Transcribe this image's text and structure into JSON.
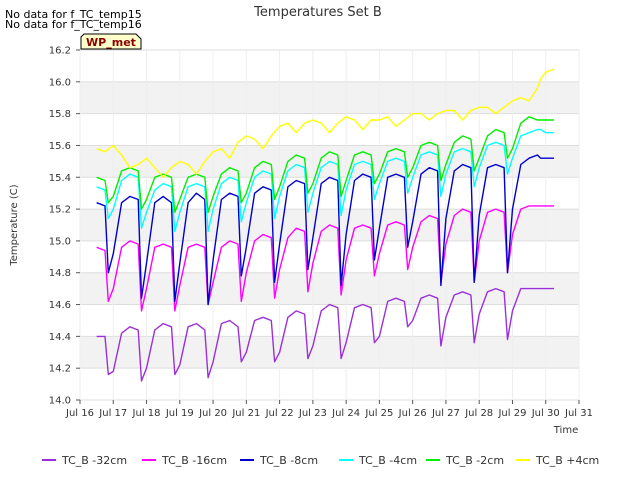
{
  "header_notes": [
    "No data for f_TC_temp15",
    "No data for f_TC_temp16"
  ],
  "badge": {
    "label": "WP_met",
    "fill": "#ffffcc",
    "border": "#000000",
    "text_color": "#8b0000"
  },
  "chart_data": {
    "type": "line",
    "title": "Temperatures Set B",
    "xlabel": "Time",
    "ylabel": "Temperature (C)",
    "ylim": [
      14.0,
      16.2
    ],
    "xlim": [
      16,
      31
    ],
    "yticks": [
      "14.0",
      "14.2",
      "14.4",
      "14.6",
      "14.8",
      "15.0",
      "15.2",
      "15.4",
      "15.6",
      "15.8",
      "16.0",
      "16.2"
    ],
    "xticks": [
      "Jul 16",
      "Jul 17",
      "Jul 18",
      "Jul 19",
      "Jul 20",
      "Jul 21",
      "Jul 22",
      "Jul 23",
      "Jul 24",
      "Jul 25",
      "Jul 26",
      "Jul 27",
      "Jul 28",
      "Jul 29",
      "Jul 30",
      "Jul 31"
    ],
    "grid": true,
    "legend_position": "bottom",
    "series": [
      {
        "name": "TC_B -32cm",
        "color": "#9b30d9",
        "x": [
          16.5,
          16.75,
          16.85,
          17.0,
          17.25,
          17.5,
          17.75,
          17.85,
          18.0,
          18.25,
          18.5,
          18.75,
          18.85,
          19.0,
          19.25,
          19.5,
          19.75,
          19.85,
          20.0,
          20.25,
          20.5,
          20.75,
          20.85,
          21.0,
          21.25,
          21.5,
          21.75,
          21.85,
          22.0,
          22.25,
          22.5,
          22.75,
          22.85,
          23.0,
          23.25,
          23.5,
          23.75,
          23.85,
          24.0,
          24.25,
          24.5,
          24.75,
          24.85,
          25.0,
          25.25,
          25.5,
          25.75,
          25.85,
          26.0,
          26.25,
          26.5,
          26.75,
          26.85,
          27.0,
          27.25,
          27.5,
          27.75,
          27.85,
          28.0,
          28.25,
          28.5,
          28.75,
          28.85,
          29.0,
          29.25,
          29.5,
          29.75,
          29.85,
          30.0,
          30.25
        ],
        "y": [
          14.4,
          14.4,
          14.16,
          14.18,
          14.42,
          14.46,
          14.44,
          14.12,
          14.2,
          14.44,
          14.48,
          14.46,
          14.16,
          14.22,
          14.46,
          14.48,
          14.44,
          14.14,
          14.24,
          14.48,
          14.5,
          14.46,
          14.24,
          14.3,
          14.5,
          14.52,
          14.5,
          14.24,
          14.3,
          14.52,
          14.56,
          14.54,
          14.26,
          14.34,
          14.56,
          14.6,
          14.58,
          14.26,
          14.36,
          14.58,
          14.6,
          14.58,
          14.36,
          14.4,
          14.62,
          14.64,
          14.62,
          14.46,
          14.5,
          14.64,
          14.66,
          14.64,
          14.34,
          14.52,
          14.66,
          14.68,
          14.66,
          14.36,
          14.54,
          14.68,
          14.7,
          14.68,
          14.38,
          14.56,
          14.7,
          14.7,
          14.7,
          14.7,
          14.7,
          14.7
        ]
      },
      {
        "name": "TC_B -16cm",
        "color": "#ff00ff",
        "x": [
          16.5,
          16.75,
          16.85,
          17.0,
          17.25,
          17.5,
          17.75,
          17.85,
          18.0,
          18.25,
          18.5,
          18.75,
          18.85,
          19.0,
          19.25,
          19.5,
          19.75,
          19.85,
          20.0,
          20.25,
          20.5,
          20.75,
          20.85,
          21.0,
          21.25,
          21.5,
          21.75,
          21.85,
          22.0,
          22.25,
          22.5,
          22.75,
          22.85,
          23.0,
          23.25,
          23.5,
          23.75,
          23.85,
          24.0,
          24.25,
          24.5,
          24.75,
          24.85,
          25.0,
          25.25,
          25.5,
          25.75,
          25.85,
          26.0,
          26.25,
          26.5,
          26.75,
          26.85,
          27.0,
          27.25,
          27.5,
          27.75,
          27.85,
          28.0,
          28.25,
          28.5,
          28.75,
          28.85,
          29.0,
          29.25,
          29.5,
          29.75,
          29.85,
          30.0,
          30.25
        ],
        "y": [
          14.96,
          14.94,
          14.62,
          14.7,
          14.96,
          15.0,
          14.98,
          14.56,
          14.7,
          14.96,
          14.98,
          14.96,
          14.56,
          14.72,
          14.96,
          14.98,
          14.96,
          14.6,
          14.74,
          14.96,
          15.0,
          14.98,
          14.62,
          14.8,
          15.0,
          15.04,
          15.02,
          14.64,
          14.82,
          15.02,
          15.08,
          15.06,
          14.68,
          14.86,
          15.06,
          15.1,
          15.08,
          14.66,
          14.88,
          15.08,
          15.1,
          15.08,
          14.78,
          14.92,
          15.1,
          15.12,
          15.1,
          14.82,
          14.96,
          15.12,
          15.16,
          15.14,
          14.74,
          14.98,
          15.16,
          15.2,
          15.18,
          14.74,
          15.0,
          15.18,
          15.2,
          15.18,
          14.8,
          15.04,
          15.2,
          15.22,
          15.22,
          15.22,
          15.22,
          15.22
        ]
      },
      {
        "name": "TC_B -8cm",
        "color": "#0000cc",
        "x": [
          16.5,
          16.75,
          16.85,
          17.0,
          17.25,
          17.5,
          17.75,
          17.85,
          18.0,
          18.25,
          18.5,
          18.75,
          18.85,
          19.0,
          19.25,
          19.5,
          19.75,
          19.85,
          20.0,
          20.25,
          20.5,
          20.75,
          20.85,
          21.0,
          21.25,
          21.5,
          21.75,
          21.85,
          22.0,
          22.25,
          22.5,
          22.75,
          22.85,
          23.0,
          23.25,
          23.5,
          23.75,
          23.85,
          24.0,
          24.25,
          24.5,
          24.75,
          24.85,
          25.0,
          25.25,
          25.5,
          25.75,
          25.85,
          26.0,
          26.25,
          26.5,
          26.75,
          26.85,
          27.0,
          27.25,
          27.5,
          27.75,
          27.85,
          28.0,
          28.25,
          28.5,
          28.75,
          28.85,
          29.0,
          29.25,
          29.5,
          29.75,
          29.85,
          30.0,
          30.25
        ],
        "y": [
          15.24,
          15.22,
          14.8,
          14.92,
          15.24,
          15.28,
          15.26,
          14.64,
          14.86,
          15.24,
          15.28,
          15.24,
          14.62,
          14.86,
          15.24,
          15.3,
          15.26,
          14.6,
          14.88,
          15.26,
          15.3,
          15.28,
          14.78,
          14.96,
          15.3,
          15.34,
          15.32,
          14.74,
          14.98,
          15.34,
          15.38,
          15.36,
          14.82,
          15.02,
          15.36,
          15.4,
          15.38,
          14.72,
          15.04,
          15.38,
          15.42,
          15.4,
          14.88,
          15.08,
          15.4,
          15.42,
          15.4,
          14.96,
          15.12,
          15.42,
          15.46,
          15.44,
          14.72,
          15.14,
          15.44,
          15.48,
          15.46,
          14.74,
          15.16,
          15.46,
          15.48,
          15.46,
          14.8,
          15.2,
          15.48,
          15.52,
          15.54,
          15.52,
          15.52,
          15.52
        ]
      },
      {
        "name": "TC_B -4cm",
        "color": "#00ffff",
        "x": [
          16.5,
          16.75,
          16.85,
          17.0,
          17.25,
          17.5,
          17.75,
          17.85,
          18.0,
          18.25,
          18.5,
          18.75,
          18.85,
          19.0,
          19.25,
          19.5,
          19.75,
          19.85,
          20.0,
          20.25,
          20.5,
          20.75,
          20.85,
          21.0,
          21.25,
          21.5,
          21.75,
          21.85,
          22.0,
          22.25,
          22.5,
          22.75,
          22.85,
          23.0,
          23.25,
          23.5,
          23.75,
          23.85,
          24.0,
          24.25,
          24.5,
          24.75,
          24.85,
          25.0,
          25.25,
          25.5,
          25.75,
          25.85,
          26.0,
          26.25,
          26.5,
          26.75,
          26.85,
          27.0,
          27.25,
          27.5,
          27.75,
          27.85,
          28.0,
          28.25,
          28.5,
          28.75,
          28.85,
          29.0,
          29.25,
          29.5,
          29.75,
          29.85,
          30.0,
          30.25
        ],
        "y": [
          15.34,
          15.32,
          15.14,
          15.2,
          15.38,
          15.42,
          15.4,
          15.08,
          15.18,
          15.32,
          15.36,
          15.34,
          15.06,
          15.18,
          15.34,
          15.36,
          15.34,
          15.06,
          15.2,
          15.36,
          15.4,
          15.38,
          15.12,
          15.24,
          15.4,
          15.44,
          15.42,
          15.14,
          15.28,
          15.44,
          15.48,
          15.46,
          15.18,
          15.3,
          15.46,
          15.5,
          15.48,
          15.16,
          15.32,
          15.48,
          15.5,
          15.48,
          15.26,
          15.36,
          15.5,
          15.52,
          15.5,
          15.3,
          15.4,
          15.54,
          15.56,
          15.54,
          15.28,
          15.42,
          15.56,
          15.58,
          15.56,
          15.34,
          15.46,
          15.6,
          15.62,
          15.6,
          15.42,
          15.52,
          15.66,
          15.68,
          15.7,
          15.7,
          15.68,
          15.68
        ]
      },
      {
        "name": "TC_B -2cm",
        "color": "#00ee00",
        "x": [
          16.5,
          16.75,
          16.85,
          17.0,
          17.25,
          17.5,
          17.75,
          17.85,
          18.0,
          18.25,
          18.5,
          18.75,
          18.85,
          19.0,
          19.25,
          19.5,
          19.75,
          19.85,
          20.0,
          20.25,
          20.5,
          20.75,
          20.85,
          21.0,
          21.25,
          21.5,
          21.75,
          21.85,
          22.0,
          22.25,
          22.5,
          22.75,
          22.85,
          23.0,
          23.25,
          23.5,
          23.75,
          23.85,
          24.0,
          24.25,
          24.5,
          24.75,
          24.85,
          25.0,
          25.25,
          25.5,
          25.75,
          25.85,
          26.0,
          26.25,
          26.5,
          26.75,
          26.85,
          27.0,
          27.25,
          27.5,
          27.75,
          27.85,
          28.0,
          28.25,
          28.5,
          28.75,
          28.85,
          29.0,
          29.25,
          29.5,
          29.75,
          29.85,
          30.0,
          30.25
        ],
        "y": [
          15.4,
          15.38,
          15.24,
          15.28,
          15.44,
          15.46,
          15.44,
          15.2,
          15.26,
          15.4,
          15.42,
          15.4,
          15.18,
          15.26,
          15.4,
          15.42,
          15.4,
          15.18,
          15.28,
          15.42,
          15.46,
          15.44,
          15.24,
          15.3,
          15.46,
          15.5,
          15.48,
          15.26,
          15.34,
          15.5,
          15.54,
          15.52,
          15.3,
          15.36,
          15.52,
          15.56,
          15.54,
          15.28,
          15.38,
          15.54,
          15.56,
          15.54,
          15.36,
          15.42,
          15.56,
          15.58,
          15.56,
          15.4,
          15.46,
          15.6,
          15.62,
          15.6,
          15.38,
          15.48,
          15.62,
          15.66,
          15.64,
          15.44,
          15.52,
          15.66,
          15.7,
          15.68,
          15.52,
          15.58,
          15.74,
          15.78,
          15.76,
          15.76,
          15.76,
          15.76
        ]
      },
      {
        "name": "TC_B +4cm",
        "color": "#ffff00",
        "x": [
          16.5,
          16.75,
          17.0,
          17.25,
          17.5,
          17.75,
          18.0,
          18.25,
          18.5,
          18.75,
          19.0,
          19.25,
          19.5,
          19.75,
          20.0,
          20.25,
          20.5,
          20.75,
          21.0,
          21.25,
          21.5,
          21.75,
          22.0,
          22.25,
          22.5,
          22.75,
          23.0,
          23.25,
          23.5,
          23.75,
          24.0,
          24.25,
          24.5,
          24.75,
          25.0,
          25.25,
          25.5,
          25.75,
          26.0,
          26.25,
          26.5,
          26.75,
          27.0,
          27.25,
          27.5,
          27.75,
          28.0,
          28.25,
          28.5,
          28.75,
          29.0,
          29.25,
          29.5,
          29.75,
          29.85,
          30.0,
          30.25
        ],
        "y": [
          15.58,
          15.56,
          15.6,
          15.54,
          15.46,
          15.48,
          15.52,
          15.46,
          15.4,
          15.46,
          15.5,
          15.48,
          15.42,
          15.5,
          15.56,
          15.58,
          15.52,
          15.62,
          15.66,
          15.64,
          15.58,
          15.66,
          15.72,
          15.74,
          15.68,
          15.74,
          15.76,
          15.74,
          15.68,
          15.74,
          15.78,
          15.76,
          15.7,
          15.76,
          15.76,
          15.78,
          15.72,
          15.76,
          15.8,
          15.8,
          15.76,
          15.8,
          15.82,
          15.82,
          15.76,
          15.82,
          15.84,
          15.84,
          15.8,
          15.84,
          15.88,
          15.9,
          15.88,
          15.96,
          16.02,
          16.06,
          16.08
        ]
      }
    ]
  }
}
